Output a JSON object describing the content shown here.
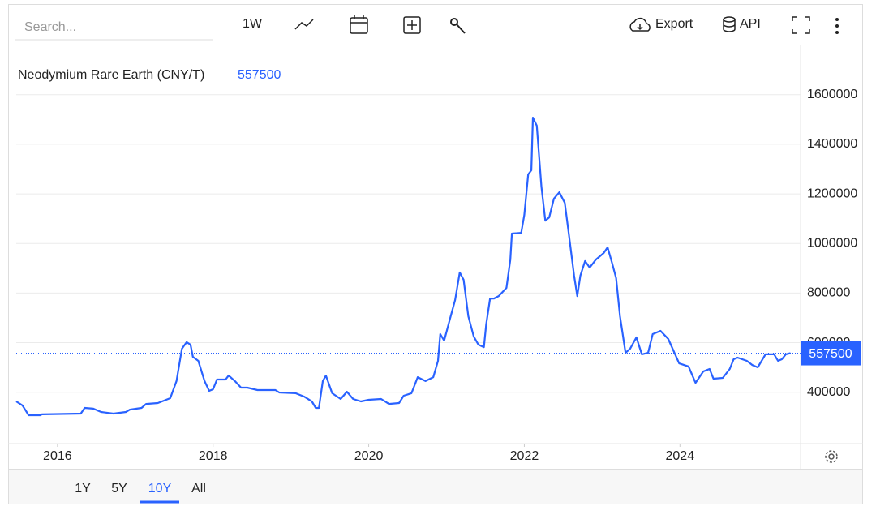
{
  "toolbar": {
    "search_placeholder": "Search...",
    "interval": "1W",
    "export": "Export",
    "api": "API"
  },
  "chart_data": {
    "type": "line",
    "title": "Neodymium Rare Earth (CNY/T)",
    "last_value": 557500,
    "color": "#2962ff",
    "x": [
      2015.47,
      2015.55,
      2015.63,
      2015.78,
      2015.8,
      2016.3,
      2016.35,
      2016.46,
      2016.56,
      2016.72,
      2016.88,
      2016.93,
      2017.08,
      2017.14,
      2017.29,
      2017.45,
      2017.53,
      2017.6,
      2017.66,
      2017.71,
      2017.74,
      2017.81,
      2017.89,
      2017.95,
      2018.0,
      2018.05,
      2018.16,
      2018.2,
      2018.28,
      2018.36,
      2018.44,
      2018.57,
      2018.8,
      2018.85,
      2019.06,
      2019.17,
      2019.27,
      2019.32,
      2019.36,
      2019.41,
      2019.45,
      2019.53,
      2019.64,
      2019.72,
      2019.8,
      2019.9,
      2020.0,
      2020.16,
      2020.26,
      2020.39,
      2020.45,
      2020.55,
      2020.63,
      2020.73,
      2020.83,
      2020.89,
      2020.92,
      2020.97,
      2021.04,
      2021.11,
      2021.17,
      2021.22,
      2021.28,
      2021.35,
      2021.41,
      2021.48,
      2021.51,
      2021.56,
      2021.61,
      2021.67,
      2021.77,
      2021.82,
      2021.84,
      2021.96,
      2022.0,
      2022.05,
      2022.09,
      2022.11,
      2022.16,
      2022.22,
      2022.27,
      2022.32,
      2022.38,
      2022.45,
      2022.52,
      2022.57,
      2022.64,
      2022.68,
      2022.72,
      2022.78,
      2022.84,
      2022.92,
      2023.02,
      2023.07,
      2023.13,
      2023.18,
      2023.23,
      2023.3,
      2023.36,
      2023.44,
      2023.51,
      2023.59,
      2023.65,
      2023.75,
      2023.85,
      2023.99,
      2024.11,
      2024.2,
      2024.3,
      2024.38,
      2024.43,
      2024.55,
      2024.64,
      2024.69,
      2024.74,
      2024.86,
      2024.93,
      2025.0,
      2025.1,
      2025.21,
      2025.26,
      2025.31,
      2025.36,
      2025.42
    ],
    "values": [
      363000,
      347000,
      307500,
      307500,
      311000,
      314000,
      337000,
      334000,
      320500,
      314000,
      320500,
      330000,
      337000,
      353000,
      356500,
      376000,
      445000,
      575500,
      602000,
      592000,
      543000,
      526500,
      445000,
      405500,
      412000,
      451500,
      451500,
      467500,
      445000,
      418500,
      418500,
      409000,
      409000,
      399000,
      396000,
      382500,
      363000,
      337000,
      337000,
      445000,
      467500,
      396000,
      373000,
      402000,
      373000,
      363000,
      369500,
      373000,
      353000,
      356500,
      386000,
      396000,
      461000,
      445000,
      461000,
      526500,
      634500,
      608000,
      690000,
      772000,
      883000,
      853500,
      706500,
      624500,
      592000,
      582000,
      673500,
      778000,
      778000,
      788000,
      821000,
      935000,
      1040000,
      1043000,
      1115000,
      1278500,
      1295000,
      1507500,
      1475000,
      1229500,
      1092000,
      1105000,
      1180500,
      1206500,
      1164000,
      1043000,
      870000,
      788000,
      870000,
      929000,
      902500,
      935000,
      961500,
      984500,
      919000,
      860000,
      706500,
      559000,
      575500,
      621500,
      553000,
      559000,
      634500,
      647500,
      615000,
      516500,
      504000,
      438000,
      484000,
      494000,
      454500,
      458000,
      494000,
      533000,
      539500,
      526500,
      510000,
      500500,
      553000,
      553000,
      526500,
      533000,
      553000,
      557500
    ],
    "xlim": [
      2015.47,
      2025.55
    ],
    "xticks": [
      2016,
      2018,
      2020,
      2022,
      2024
    ],
    "ylim": [
      193000,
      1802000
    ],
    "yticks": [
      400000,
      600000,
      800000,
      1000000,
      1200000,
      1400000,
      1600000
    ],
    "grid": true,
    "ranges": [
      "1Y",
      "5Y",
      "10Y",
      "All"
    ],
    "active_range": "10Y"
  }
}
